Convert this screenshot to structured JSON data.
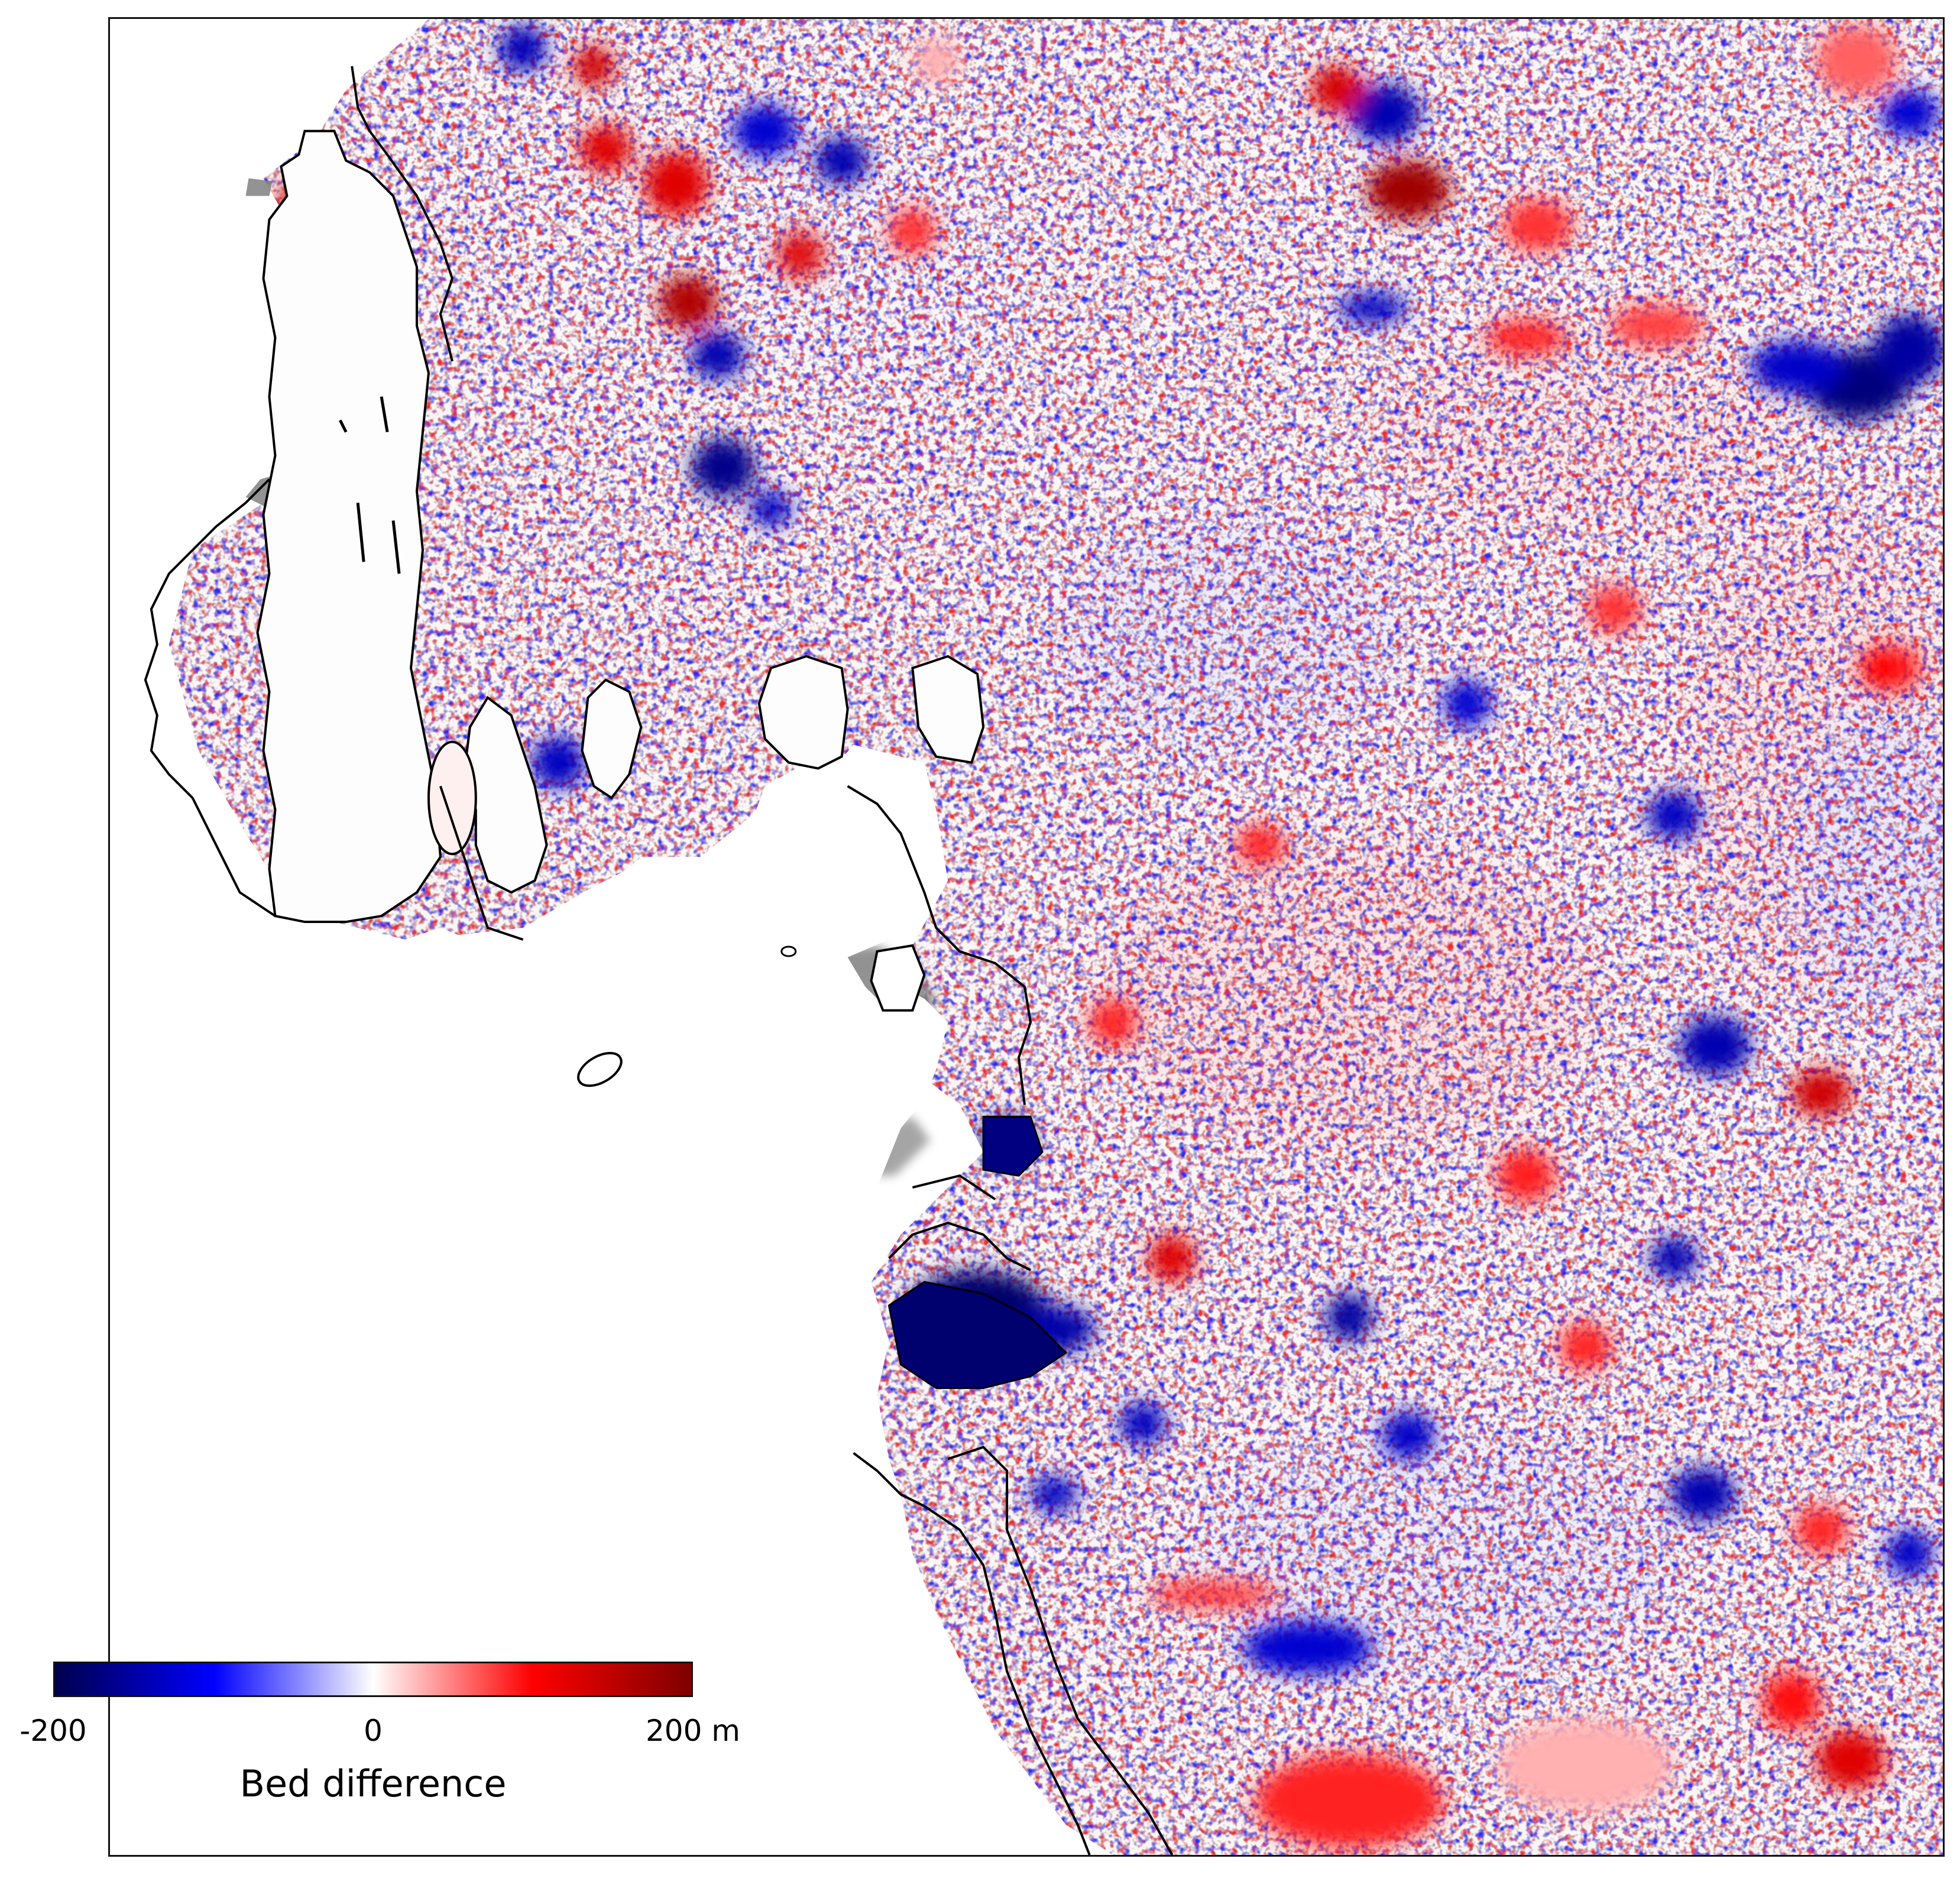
{
  "colorbar": {
    "min_label": "-200",
    "mid_label": "0",
    "max_label": "200 m",
    "title": "Bed difference",
    "colormap": "seismic",
    "range": [
      -200,
      200
    ]
  },
  "colors": {
    "negative_extreme": "#00004c",
    "negative": "#0000ff",
    "zero": "#ffffff",
    "positive": "#ff0000",
    "positive_extreme": "#7f0000",
    "no_data_shadow": "#808080",
    "coastline": "#000000"
  }
}
